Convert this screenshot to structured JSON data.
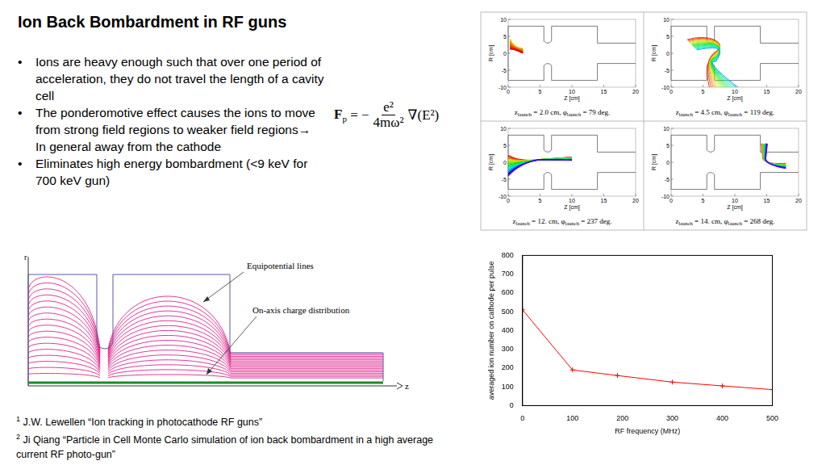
{
  "title": "Ion Back Bombardment in RF guns",
  "bullets": [
    "Ions are heavy enough such that over one period of acceleration, they do not travel the length of a cavity cell",
    "The ponderomotive effect causes the ions to move from strong field regions to weaker field regions→ In general away from the cathode",
    "Eliminates high energy bombardment (<9 keV for 700 keV gun)"
  ],
  "formula": {
    "lhs": "F",
    "lhs_sub": "p",
    "equals": "= −",
    "numerator": "e²",
    "denominator": "4mω²",
    "rhs": "∇(E²)"
  },
  "references": [
    {
      "mark": "1",
      "text": "J.W. Lewellen  “Ion tracking in photocathode RF guns”"
    },
    {
      "mark": "2",
      "text": "Ji Qiang “Particle in Cell Monte Carlo simulation of ion back bombardment in a high average current RF photo-gun”"
    }
  ],
  "diagram": {
    "axis_r": "r",
    "axis_z": "z",
    "equipotential_label": "Equipotential lines",
    "charge_label": "On-axis charge distribution"
  },
  "trajectory_panels": [
    {
      "xlabel": "Z [cm]",
      "ylabel": "R [cm]",
      "xlim": [
        0,
        20
      ],
      "ylim": [
        -10,
        10
      ],
      "xticks": [
        0,
        5,
        10,
        15,
        20
      ],
      "yticks": [
        -10,
        -5,
        0,
        5,
        10
      ],
      "caption": [
        {
          "text": "z"
        },
        {
          "text": "launch",
          "sub": true
        },
        {
          "text": " = 2.0 cm, φ"
        },
        {
          "text": "launch",
          "sub": true
        },
        {
          "text": " = 79 deg."
        }
      ]
    },
    {
      "xlabel": "Z [cm]",
      "ylabel": "R [cm]",
      "xlim": [
        0,
        20
      ],
      "ylim": [
        -10,
        10
      ],
      "xticks": [
        0,
        5,
        10,
        15,
        20
      ],
      "yticks": [
        -10,
        -5,
        0,
        5,
        10
      ],
      "caption": [
        {
          "text": "z"
        },
        {
          "text": "launch",
          "sub": true
        },
        {
          "text": " = 4.5 cm, φ"
        },
        {
          "text": "launch",
          "sub": true
        },
        {
          "text": " = 119 deg."
        }
      ]
    },
    {
      "xlabel": "Z [cm]",
      "ylabel": "R [cm]",
      "xlim": [
        0,
        20
      ],
      "ylim": [
        -10,
        10
      ],
      "xticks": [
        0,
        5,
        10,
        15,
        20
      ],
      "yticks": [
        -10,
        -5,
        0,
        5,
        10
      ],
      "caption": [
        {
          "text": "z"
        },
        {
          "text": "launch",
          "sub": true
        },
        {
          "text": " = 12. cm, φ"
        },
        {
          "text": "launch",
          "sub": true
        },
        {
          "text": " = 237 deg."
        }
      ]
    },
    {
      "xlabel": "Z [cm]",
      "ylabel": "R [cm]",
      "xlim": [
        0,
        20
      ],
      "ylim": [
        -10,
        10
      ],
      "xticks": [
        0,
        5,
        10,
        15,
        20
      ],
      "yticks": [
        -10,
        -5,
        0,
        5,
        10
      ],
      "caption": [
        {
          "text": "z"
        },
        {
          "text": "launch",
          "sub": true
        },
        {
          "text": " = 14. cm, φ"
        },
        {
          "text": "launch",
          "sub": true
        },
        {
          "text": " = 268 deg."
        }
      ]
    }
  ],
  "chart_data": {
    "type": "line",
    "x": [
      0,
      100,
      190,
      300,
      400,
      500
    ],
    "values": [
      510,
      190,
      160,
      125,
      105,
      85
    ],
    "color": "#ff0000",
    "marker": "cross",
    "xlabel": "RF frequency (MHz)",
    "ylabel": "averaged ion number on cathode per pulse",
    "xlim": [
      0,
      500
    ],
    "ylim": [
      0,
      800
    ],
    "xticks": [
      0,
      100,
      200,
      300,
      400,
      500
    ],
    "yticks": [
      0,
      100,
      200,
      300,
      400,
      500,
      600,
      700,
      800
    ],
    "grid": false
  }
}
